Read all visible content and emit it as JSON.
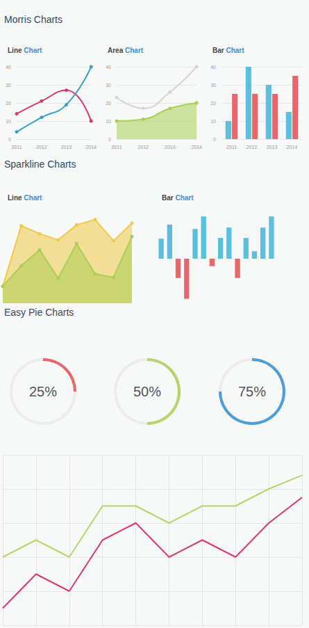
{
  "headings": [
    "Morris Charts",
    "Sparkline Charts",
    "Easy Pie Charts"
  ],
  "chart_data": [
    {
      "type": "line",
      "title": "Line Chart",
      "categories": [
        "2011",
        "2012",
        "2013",
        "2014"
      ],
      "series": [
        {
          "color": "#d9386a",
          "values": [
            14,
            21,
            27,
            10
          ],
          "line_style": "smooth",
          "marker": "circle"
        },
        {
          "color": "#3aa0c9",
          "values": [
            4,
            12,
            19,
            40
          ],
          "line_style": "smooth",
          "marker": "circle"
        }
      ],
      "ylim": [
        0,
        40
      ],
      "yticks": [
        0,
        10,
        20,
        30,
        40
      ],
      "grid": true
    },
    {
      "type": "line",
      "title": "Area Chart",
      "categories": [
        "2011",
        "2012",
        "2013",
        "2014"
      ],
      "series": [
        {
          "type": "line",
          "color": "#d5d5d5",
          "values": [
            23,
            17,
            26,
            40
          ],
          "line_style": "smooth",
          "marker": "circle"
        },
        {
          "type": "area",
          "color": "#a9cf54",
          "values": [
            10,
            11,
            17,
            20
          ],
          "line_style": "smooth",
          "marker": "circle"
        }
      ],
      "ylim": [
        0,
        40
      ],
      "yticks": [
        0,
        10,
        20,
        30,
        40
      ],
      "grid": true
    },
    {
      "type": "bar",
      "title": "Bar Chart",
      "categories": [
        "2011",
        "2012",
        "2013",
        "2014"
      ],
      "series": [
        {
          "color": "#5bc0de",
          "values": [
            10,
            40,
            30,
            15
          ]
        },
        {
          "color": "#e8676b",
          "values": [
            25,
            25,
            25,
            35
          ]
        }
      ],
      "ylim": [
        0,
        40
      ],
      "yticks": [
        0,
        10,
        20,
        30,
        40
      ],
      "grid": true
    },
    {
      "type": "line",
      "title": "Line Chart",
      "categories": [
        null,
        null,
        null,
        null,
        null,
        null,
        null,
        null
      ],
      "series": [
        {
          "type": "area",
          "color": "#f0c948",
          "values": [
            19,
            87,
            78,
            71,
            88,
            94,
            70,
            90
          ],
          "line_style": "solid",
          "marker": "circle"
        },
        {
          "type": "area",
          "color": "#a9cf54",
          "values": [
            19,
            42,
            60,
            28,
            67,
            33,
            29,
            75
          ],
          "line_style": "solid",
          "marker": "circle"
        }
      ],
      "ylim": [
        0,
        100
      ],
      "tick_labels": false,
      "grid": false
    },
    {
      "type": "bar",
      "title": "Bar Chart",
      "categories": [
        null,
        null,
        null,
        null,
        null,
        null,
        null,
        null,
        null,
        null,
        null,
        null,
        null,
        null
      ],
      "values": [
        27,
        46,
        -26,
        -54,
        40,
        57,
        -10,
        28,
        42,
        -26,
        28,
        10,
        42,
        57
      ],
      "colors": [
        "#5bc0de",
        "#5bc0de",
        "#e8676b",
        "#e8676b",
        "#5bc0de",
        "#5bc0de",
        "#e8676b",
        "#5bc0de",
        "#5bc0de",
        "#e8676b",
        "#5bc0de",
        "#5bc0de",
        "#5bc0de",
        "#5bc0de"
      ],
      "ylim": [
        -60,
        60
      ],
      "tick_labels": false,
      "grid": false
    },
    {
      "type": "pie",
      "values": [
        25
      ],
      "value_labels": [
        "25%"
      ],
      "color": "#e8676b",
      "ylim": [
        0,
        100
      ]
    },
    {
      "type": "pie",
      "values": [
        50
      ],
      "value_labels": [
        "50%"
      ],
      "color": "#b5d56a",
      "ylim": [
        0,
        100
      ]
    },
    {
      "type": "pie",
      "values": [
        75
      ],
      "value_labels": [
        "75%"
      ],
      "color": "#4a9fd9",
      "ylim": [
        0,
        100
      ]
    },
    {
      "type": "line",
      "categories": [
        null,
        null,
        null,
        null,
        null,
        null,
        null,
        null,
        null,
        null
      ],
      "series": [
        {
          "color": "#b5d56a",
          "values": [
            40,
            50,
            40,
            70,
            70,
            60,
            70,
            70,
            80,
            88
          ],
          "line_style": "solid",
          "marker": "none"
        },
        {
          "color": "#d9386a",
          "values": [
            10,
            30,
            20,
            50,
            60,
            40,
            50,
            40,
            60,
            75
          ],
          "line_style": "solid",
          "marker": "none"
        }
      ],
      "ylim": [
        0,
        100
      ],
      "yticks": [
        0,
        20,
        40,
        60,
        80,
        100
      ],
      "grid": true,
      "tick_labels": false
    }
  ]
}
